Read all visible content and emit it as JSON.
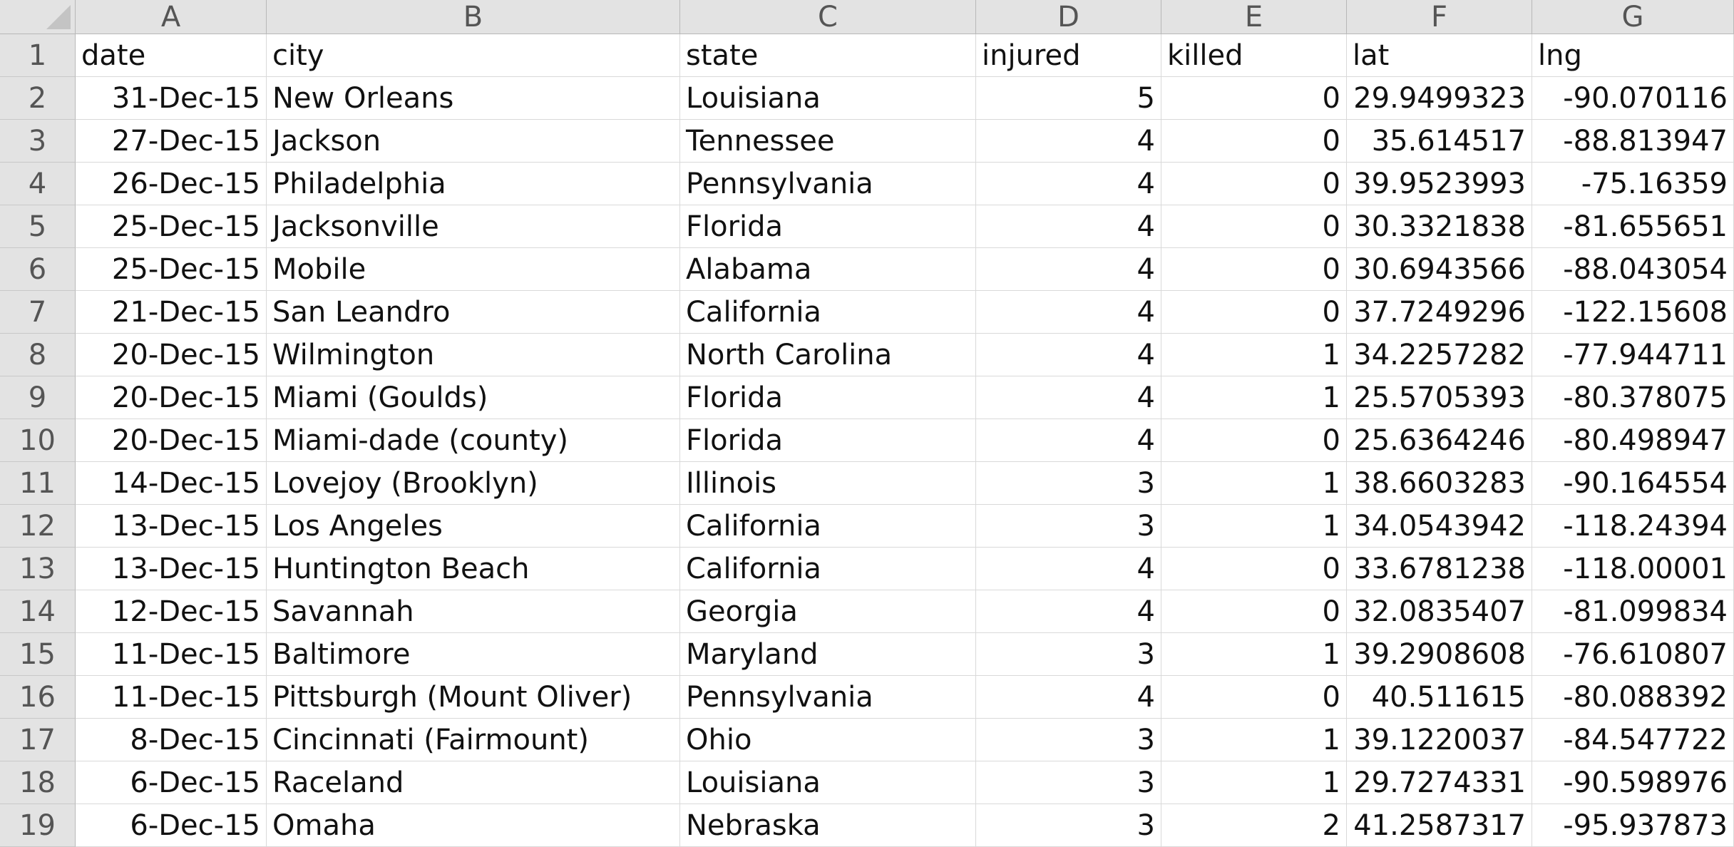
{
  "columns": [
    "A",
    "B",
    "C",
    "D",
    "E",
    "F",
    "G"
  ],
  "rows": [
    {
      "num": "1",
      "cells": [
        "date",
        "city",
        "state",
        "injured",
        "killed",
        "lat",
        "lng"
      ]
    },
    {
      "num": "2",
      "cells": [
        "31-Dec-15",
        "New Orleans",
        "Louisiana",
        "5",
        "0",
        "29.9499323",
        "-90.070116"
      ]
    },
    {
      "num": "3",
      "cells": [
        "27-Dec-15",
        "Jackson",
        "Tennessee",
        "4",
        "0",
        "35.614517",
        "-88.813947"
      ]
    },
    {
      "num": "4",
      "cells": [
        "26-Dec-15",
        "Philadelphia",
        "Pennsylvania",
        "4",
        "0",
        "39.9523993",
        "-75.16359"
      ]
    },
    {
      "num": "5",
      "cells": [
        "25-Dec-15",
        "Jacksonville",
        "Florida",
        "4",
        "0",
        "30.3321838",
        "-81.655651"
      ]
    },
    {
      "num": "6",
      "cells": [
        "25-Dec-15",
        "Mobile",
        "Alabama",
        "4",
        "0",
        "30.6943566",
        "-88.043054"
      ]
    },
    {
      "num": "7",
      "cells": [
        "21-Dec-15",
        "San Leandro",
        "California",
        "4",
        "0",
        "37.7249296",
        "-122.15608"
      ]
    },
    {
      "num": "8",
      "cells": [
        "20-Dec-15",
        "Wilmington",
        "North Carolina",
        "4",
        "1",
        "34.2257282",
        "-77.944711"
      ]
    },
    {
      "num": "9",
      "cells": [
        "20-Dec-15",
        "Miami (Goulds)",
        "Florida",
        "4",
        "1",
        "25.5705393",
        "-80.378075"
      ]
    },
    {
      "num": "10",
      "cells": [
        "20-Dec-15",
        "Miami-dade (county)",
        "Florida",
        "4",
        "0",
        "25.6364246",
        "-80.498947"
      ]
    },
    {
      "num": "11",
      "cells": [
        "14-Dec-15",
        "Lovejoy (Brooklyn)",
        "Illinois",
        "3",
        "1",
        "38.6603283",
        "-90.164554"
      ]
    },
    {
      "num": "12",
      "cells": [
        "13-Dec-15",
        "Los Angeles",
        "California",
        "3",
        "1",
        "34.0543942",
        "-118.24394"
      ]
    },
    {
      "num": "13",
      "cells": [
        "13-Dec-15",
        "Huntington Beach",
        "California",
        "4",
        "0",
        "33.6781238",
        "-118.00001"
      ]
    },
    {
      "num": "14",
      "cells": [
        "12-Dec-15",
        "Savannah",
        "Georgia",
        "4",
        "0",
        "32.0835407",
        "-81.099834"
      ]
    },
    {
      "num": "15",
      "cells": [
        "11-Dec-15",
        "Baltimore",
        "Maryland",
        "3",
        "1",
        "39.2908608",
        "-76.610807"
      ]
    },
    {
      "num": "16",
      "cells": [
        "11-Dec-15",
        "Pittsburgh (Mount Oliver)",
        "Pennsylvania",
        "4",
        "0",
        "40.511615",
        "-80.088392"
      ]
    },
    {
      "num": "17",
      "cells": [
        "8-Dec-15",
        "Cincinnati (Fairmount)",
        "Ohio",
        "3",
        "1",
        "39.1220037",
        "-84.547722"
      ]
    },
    {
      "num": "18",
      "cells": [
        "6-Dec-15",
        "Raceland",
        "Louisiana",
        "3",
        "1",
        "29.7274331",
        "-90.598976"
      ]
    },
    {
      "num": "19",
      "cells": [
        "6-Dec-15",
        "Omaha",
        "Nebraska",
        "3",
        "2",
        "41.2587317",
        "-95.937873"
      ]
    }
  ],
  "header_bg_color": "#e3e3e3",
  "grid_line_color": "#d9d9d9",
  "corner_icon": "select-all-triangle-icon"
}
